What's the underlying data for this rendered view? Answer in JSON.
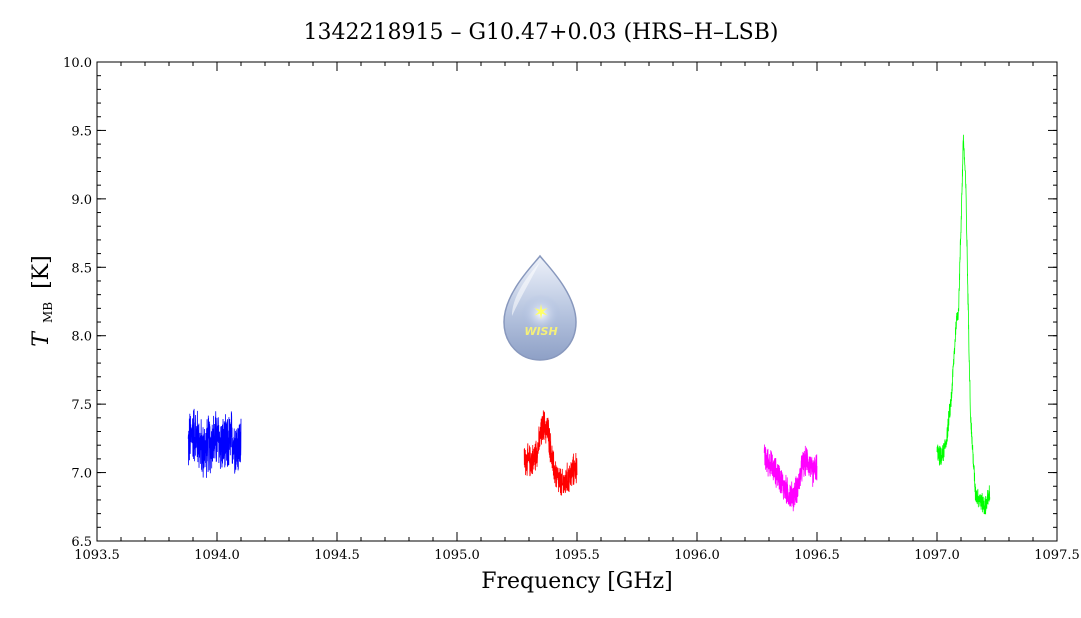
{
  "chart_data": {
    "type": "line",
    "title": "1342218915 – G10.47+0.03 (HRS–H–LSB)",
    "xlabel": "Frequency [GHz]",
    "ylabel_main": "T",
    "ylabel_sub": "MB",
    "ylabel_unit": "[K]",
    "xlim": [
      1093.5,
      1097.5
    ],
    "ylim": [
      6.5,
      10.0
    ],
    "x_ticks": [
      1093.5,
      1094.0,
      1094.5,
      1095.0,
      1095.5,
      1096.0,
      1096.5,
      1097.0,
      1097.5
    ],
    "y_ticks": [
      6.5,
      7.0,
      7.5,
      8.0,
      8.5,
      9.0,
      9.5,
      10.0
    ],
    "x_tick_labels": [
      "1093.5",
      "1094.0",
      "1094.5",
      "1095.0",
      "1095.5",
      "1096.0",
      "1096.5",
      "1097.0",
      "1097.5"
    ],
    "y_tick_labels": [
      "6.5",
      "7.0",
      "7.5",
      "8.0",
      "8.5",
      "9.0",
      "9.5",
      "10.0"
    ],
    "series": [
      {
        "color": "#0000ff",
        "x": [
          1093.88,
          1093.9,
          1093.92,
          1093.94,
          1093.96,
          1093.98,
          1094.0,
          1094.02,
          1094.04,
          1094.06,
          1094.08,
          1094.1
        ],
        "y": [
          7.2,
          7.3,
          7.25,
          7.15,
          7.2,
          7.22,
          7.25,
          7.2,
          7.18,
          7.25,
          7.2,
          7.2
        ]
      },
      {
        "color": "#ff0000",
        "x": [
          1095.28,
          1095.3,
          1095.32,
          1095.34,
          1095.36,
          1095.38,
          1095.4,
          1095.42,
          1095.44,
          1095.46,
          1095.48,
          1095.5
        ],
        "y": [
          7.1,
          7.08,
          7.1,
          7.2,
          7.35,
          7.3,
          7.05,
          6.95,
          6.9,
          6.95,
          7.0,
          7.05
        ]
      },
      {
        "color": "#ff00ff",
        "x": [
          1096.28,
          1096.3,
          1096.32,
          1096.34,
          1096.36,
          1096.38,
          1096.4,
          1096.42,
          1096.44,
          1096.46,
          1096.48,
          1096.5
        ],
        "y": [
          7.1,
          7.08,
          7.02,
          6.98,
          6.9,
          6.85,
          6.82,
          6.9,
          7.05,
          7.1,
          7.0,
          7.05
        ]
      },
      {
        "color": "#00ff00",
        "x": [
          1097.0,
          1097.02,
          1097.04,
          1097.06,
          1097.08,
          1097.09,
          1097.1,
          1097.11,
          1097.12,
          1097.13,
          1097.14,
          1097.16,
          1097.18,
          1097.2,
          1097.22
        ],
        "y": [
          7.15,
          7.1,
          7.25,
          7.55,
          8.1,
          8.2,
          8.8,
          9.45,
          9.1,
          8.2,
          7.4,
          6.85,
          6.8,
          6.75,
          6.85
        ]
      }
    ],
    "grid": false,
    "legend": "none"
  },
  "logo": {
    "text": "WISH",
    "colors": {
      "drop_top": "#e8eef8",
      "drop_bottom": "#8fa2c7",
      "star": "#ffff66"
    }
  }
}
